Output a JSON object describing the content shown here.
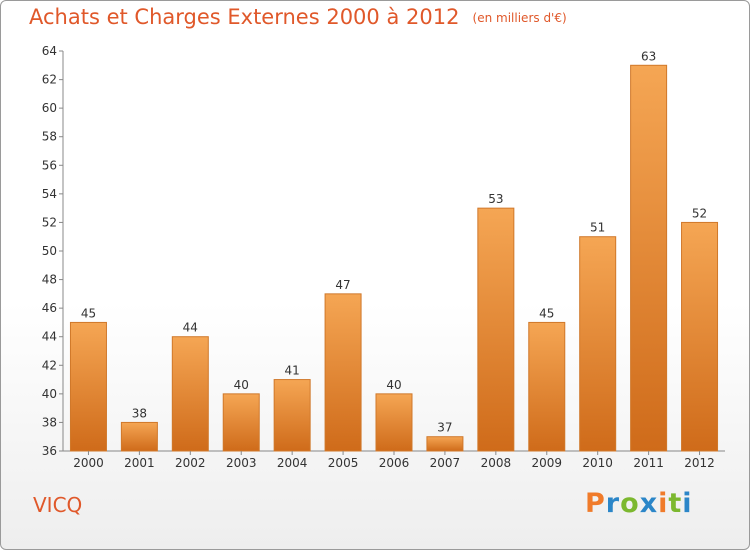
{
  "header": {
    "title": "Achats et Charges Externes 2000 à 2012",
    "unit": "(en milliers d'€)"
  },
  "footer": {
    "commune": "VICQ",
    "logo_text": "Proxiti",
    "logo_colors": [
      "#f07b2a",
      "#2b86c8",
      "#7cb82f",
      "#2b86c8",
      "#f07b2a",
      "#7cb82f",
      "#2b86c8"
    ]
  },
  "colors": {
    "accent": "#e0582a",
    "bar_light": "#f5a654",
    "bar_dark": "#cf6b1a",
    "axis": "#888888"
  },
  "chart_data": {
    "type": "bar",
    "categories": [
      "2000",
      "2001",
      "2002",
      "2003",
      "2004",
      "2005",
      "2006",
      "2007",
      "2008",
      "2009",
      "2010",
      "2011",
      "2012"
    ],
    "values": [
      45,
      38,
      44,
      40,
      41,
      47,
      40,
      37,
      53,
      45,
      51,
      63,
      52
    ],
    "title": "Achats et Charges Externes 2000 à 2012",
    "xlabel": "",
    "ylabel": "",
    "ylim": [
      36,
      64
    ],
    "yticks": [
      36,
      38,
      40,
      42,
      44,
      46,
      48,
      50,
      52,
      54,
      56,
      58,
      60,
      62,
      64
    ],
    "grid": false,
    "data_labels": true
  }
}
